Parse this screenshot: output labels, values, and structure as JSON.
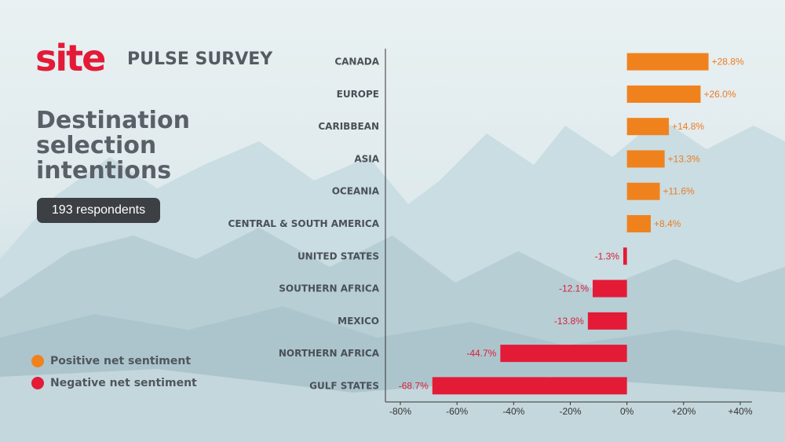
{
  "header": {
    "logo_text": "site",
    "survey_title": "PULSE SURVEY"
  },
  "panel": {
    "title": "Destination selection intentions",
    "respondents": "193 respondents"
  },
  "legend": [
    {
      "label": "Positive net sentiment",
      "color": "#f0821e"
    },
    {
      "label": "Negative net sentiment",
      "color": "#e31b37"
    }
  ],
  "colors": {
    "positive": "#f0821e",
    "negative": "#e31b37",
    "positive_text": "#ee7a22",
    "negative_text": "#d8203a"
  },
  "chart_data": {
    "type": "bar",
    "orientation": "horizontal",
    "categories": [
      "CANADA",
      "EUROPE",
      "CARIBBEAN",
      "ASIA",
      "OCEANIA",
      "CENTRAL & SOUTH AMERICA",
      "UNITED STATES",
      "SOUTHERN AFRICA",
      "MEXICO",
      "NORTHERN AFRICA",
      "GULF STATES"
    ],
    "values": [
      28.8,
      26.0,
      14.8,
      13.3,
      11.6,
      8.4,
      -1.3,
      -12.1,
      -13.8,
      -44.7,
      -68.7
    ],
    "value_labels": [
      "+28.8%",
      "+26.0%",
      "+14.8%",
      "+13.3%",
      "+11.6%",
      "+8.4%",
      "-1.3%",
      "-12.1%",
      "-13.8%",
      "-44.7%",
      "-68.7%"
    ],
    "xlim": [
      -80,
      40
    ],
    "xticks": [
      -80,
      -60,
      -40,
      -20,
      0,
      20,
      40
    ],
    "xtick_labels": [
      "-80%",
      "-60%",
      "-40%",
      "-20%",
      "0%",
      "+20%",
      "+40%"
    ],
    "xlabel": "",
    "ylabel": "",
    "grid": false
  }
}
